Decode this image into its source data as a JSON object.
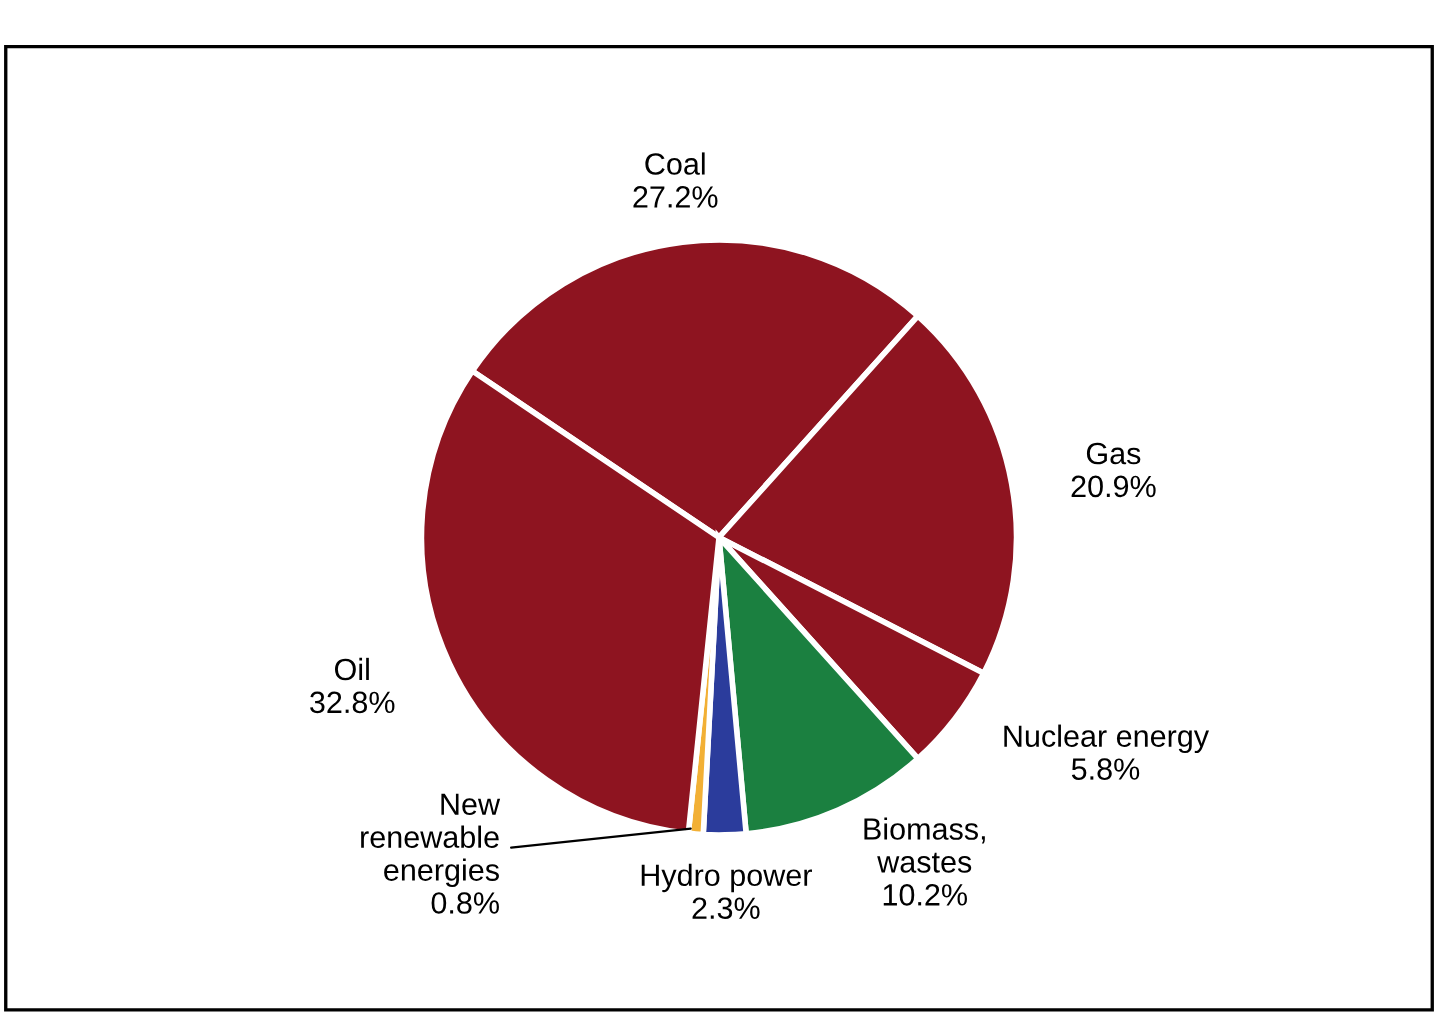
{
  "chart_data": {
    "type": "pie",
    "categories": [
      "Coal",
      "Gas",
      "Nuclear energy",
      "Biomass,\nwastes",
      "Hydro power",
      "New\nrenewable\nenergies",
      "Oil"
    ],
    "values": [
      27.2,
      20.9,
      5.8,
      10.2,
      2.3,
      0.8,
      32.8
    ],
    "value_labels": [
      "27.2%",
      "20.9%",
      "5.8%",
      "10.2%",
      "2.3%",
      "0.8%",
      "32.8%"
    ],
    "colors": [
      "#8e1420",
      "#8e1420",
      "#8e1420",
      "#1b8040",
      "#2b3c9c",
      "#f2b035",
      "#8e1420"
    ],
    "legend": false
  }
}
